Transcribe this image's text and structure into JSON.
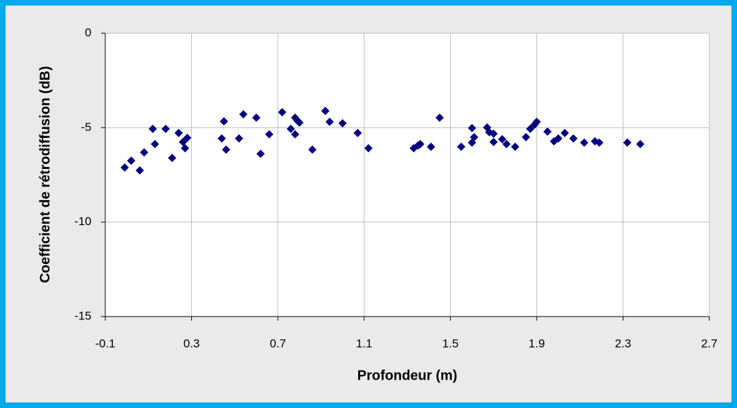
{
  "chart_data": {
    "type": "scatter",
    "xlabel": "Profondeur (m)",
    "ylabel": "Coefficient de rétrodiffusion (dB)",
    "xlim": [
      -0.1,
      2.7
    ],
    "xticks": [
      -0.1,
      0.3,
      0.7,
      1.1,
      1.5,
      1.9,
      2.3,
      2.7
    ],
    "ylim": [
      -15,
      0
    ],
    "yticks": [
      0,
      -5,
      -10,
      -15
    ],
    "grid": true,
    "series": [
      {
        "color": "#000080",
        "x": [
          -0.01,
          0.02,
          0.06,
          0.08,
          0.12,
          0.13,
          0.18,
          0.21,
          0.24,
          0.26,
          0.28,
          0.27,
          0.44,
          0.45,
          0.46,
          0.52,
          0.54,
          0.6,
          0.62,
          0.66,
          0.72,
          0.76,
          0.78,
          0.78,
          0.79,
          0.8,
          0.86,
          0.92,
          0.94,
          1.0,
          1.07,
          1.12,
          1.33,
          1.35,
          1.36,
          1.41,
          1.45,
          1.55,
          1.6,
          1.6,
          1.61,
          1.67,
          1.68,
          1.7,
          1.7,
          1.74,
          1.76,
          1.8,
          1.85,
          1.87,
          1.89,
          1.9,
          1.95,
          1.98,
          2.0,
          2.03,
          2.07,
          2.12,
          2.17,
          2.19,
          2.32,
          2.38
        ],
        "values": [
          -7.11,
          -6.75,
          -7.26,
          -6.31,
          -5.06,
          -5.87,
          -5.06,
          -6.6,
          -5.28,
          -5.76,
          -5.54,
          -6.09,
          -5.57,
          -4.66,
          -6.16,
          -5.57,
          -4.29,
          -4.47,
          -6.38,
          -5.35,
          -4.18,
          -5.06,
          -4.47,
          -5.35,
          -4.62,
          -4.73,
          -6.16,
          -4.11,
          -4.69,
          -4.77,
          -5.28,
          -6.09,
          -6.09,
          -5.94,
          -5.87,
          -6.01,
          -4.47,
          -6.01,
          -5.79,
          -5.02,
          -5.5,
          -4.99,
          -5.24,
          -5.32,
          -5.76,
          -5.61,
          -5.87,
          -6.01,
          -5.5,
          -5.06,
          -4.84,
          -4.69,
          -5.21,
          -5.72,
          -5.57,
          -5.28,
          -5.57,
          -5.79,
          -5.72,
          -5.79,
          -5.79,
          -5.87
        ]
      }
    ]
  }
}
